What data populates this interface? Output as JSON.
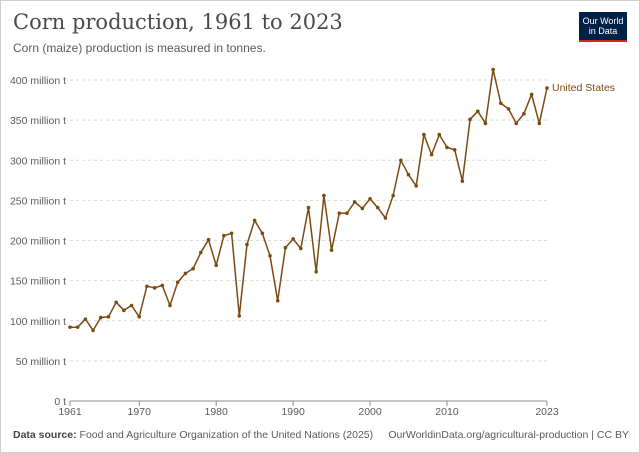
{
  "header": {
    "title": "Corn production, 1961 to 2023",
    "subtitle": "Corn (maize) production is measured in tonnes.",
    "logo_line1": "Our World",
    "logo_line2": "in Data"
  },
  "footer": {
    "source_label": "Data source:",
    "source_text": "Food and Agriculture Organization of the United Nations (2025)",
    "url_text": "OurWorldinData.org/agricultural-production | CC BY"
  },
  "colors": {
    "series": "#7b4a12",
    "grid": "#d9d9d9",
    "text": "#5b5b5b",
    "logo_bg": "#002147",
    "logo_accent": "#ce261e"
  },
  "chart_data": {
    "type": "line",
    "title": "Corn production, 1961 to 2023",
    "xlim": [
      1961,
      2023
    ],
    "ylim": [
      0,
      400
    ],
    "y_unit": "million tonnes",
    "y_ticks": [
      0,
      50,
      100,
      150,
      200,
      250,
      300,
      350,
      400
    ],
    "y_tick_labels": [
      "0 t",
      "50 million t",
      "100 million t",
      "150 million t",
      "200 million t",
      "250 million t",
      "300 million t",
      "350 million t",
      "400 million t"
    ],
    "x_ticks": [
      1961,
      1970,
      1980,
      1990,
      2000,
      2010,
      2023
    ],
    "x_tick_labels": [
      "1961",
      "1970",
      "1980",
      "1990",
      "2000",
      "2010",
      "2023"
    ],
    "grid": "horizontal dashed",
    "series": [
      {
        "name": "United States",
        "x": [
          1961,
          1962,
          1963,
          1964,
          1965,
          1966,
          1967,
          1968,
          1969,
          1970,
          1971,
          1972,
          1973,
          1974,
          1975,
          1976,
          1977,
          1978,
          1979,
          1980,
          1981,
          1982,
          1983,
          1984,
          1985,
          1986,
          1987,
          1988,
          1989,
          1990,
          1991,
          1992,
          1993,
          1994,
          1995,
          1996,
          1997,
          1998,
          1999,
          2000,
          2001,
          2002,
          2003,
          2004,
          2005,
          2006,
          2007,
          2008,
          2009,
          2010,
          2011,
          2012,
          2013,
          2014,
          2015,
          2016,
          2017,
          2018,
          2019,
          2020,
          2021,
          2022,
          2023
        ],
        "values": [
          92,
          92,
          102,
          88,
          104,
          105,
          123,
          113,
          119,
          105,
          143,
          141,
          144,
          119,
          148,
          159,
          165,
          185,
          201,
          169,
          206,
          209,
          106,
          195,
          225,
          209,
          181,
          125,
          191,
          202,
          190,
          241,
          161,
          256,
          188,
          234,
          234,
          248,
          240,
          252,
          241,
          228,
          256,
          300,
          282,
          268,
          332,
          307,
          332,
          316,
          313,
          274,
          351,
          361,
          346,
          413,
          371,
          364,
          346,
          358,
          382,
          346,
          390
        ]
      }
    ]
  }
}
